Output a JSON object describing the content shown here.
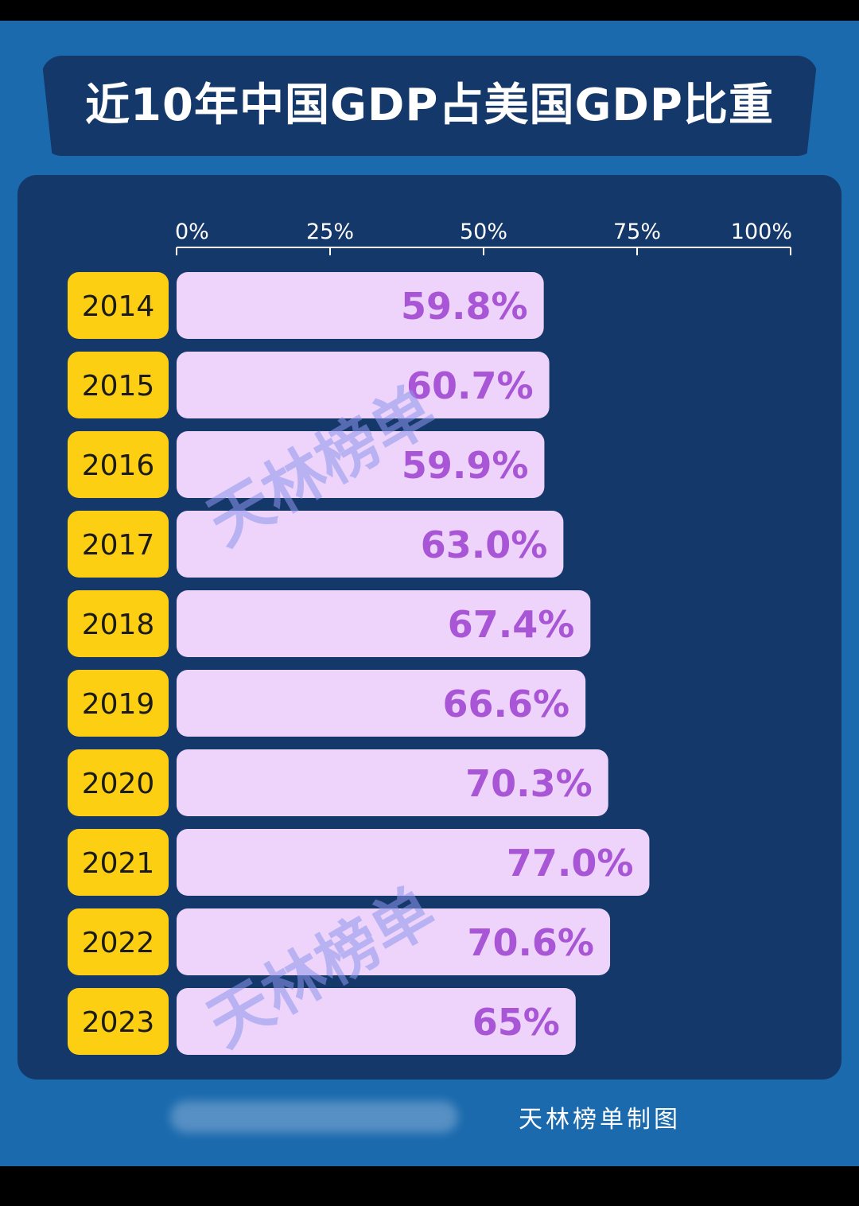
{
  "title": "近10年中国GDP占美国GDP比重",
  "watermark": "天林榜单",
  "footer": {
    "credit": "天林榜单制图"
  },
  "colors": {
    "background": "#1a6aad",
    "panel": "#15386a",
    "bar_fill": "#eed4fb",
    "bar_label": "#a855d6",
    "year_badge": "#fdcf13",
    "axis": "#ffffff"
  },
  "chart_data": {
    "type": "bar",
    "orientation": "horizontal",
    "categories": [
      "2014",
      "2015",
      "2016",
      "2017",
      "2018",
      "2019",
      "2020",
      "2021",
      "2022",
      "2023"
    ],
    "values": [
      59.8,
      60.7,
      59.9,
      63.0,
      67.4,
      66.6,
      70.3,
      77.0,
      70.6,
      65
    ],
    "value_labels": [
      "59.8%",
      "60.7%",
      "59.9%",
      "63.0%",
      "67.4%",
      "66.6%",
      "70.3%",
      "77.0%",
      "70.6%",
      "65%"
    ],
    "xlim": [
      0,
      100
    ],
    "x_ticks": [
      0,
      25,
      50,
      75,
      100
    ],
    "x_tick_labels": [
      "0%",
      "25%",
      "50%",
      "75%",
      "100%"
    ],
    "axis_position": "top",
    "grid": false,
    "legend": "none"
  }
}
